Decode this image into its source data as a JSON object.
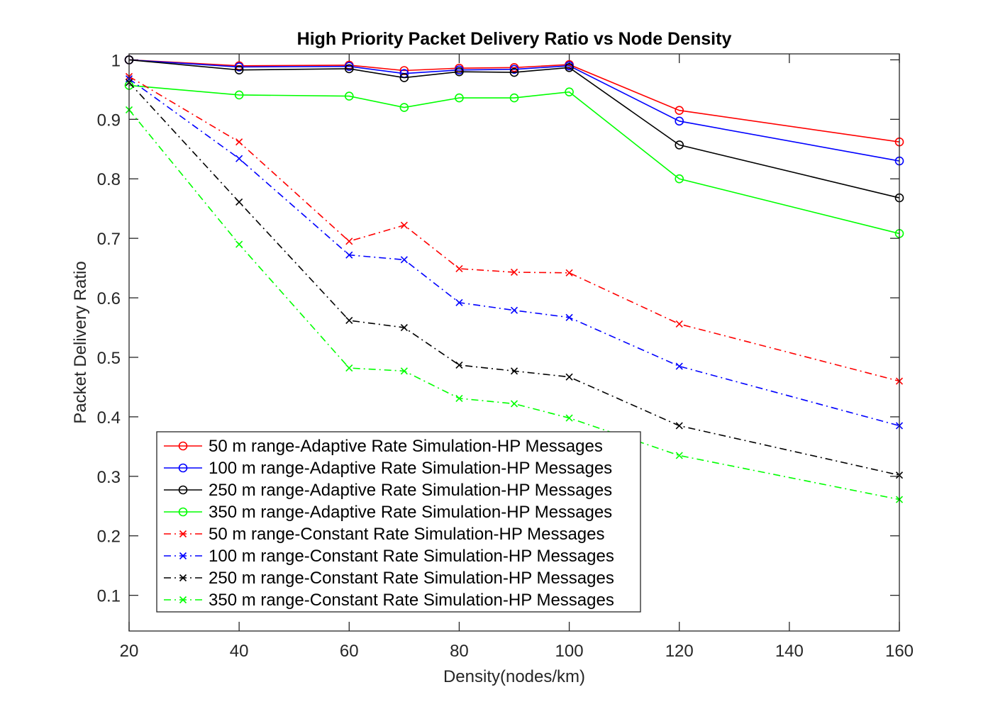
{
  "chart_data": {
    "type": "line",
    "title": "High Priority Packet Delivery Ratio vs Node Density",
    "xlabel": "Density(nodes/km)",
    "ylabel": "Packet Delivery Ratio",
    "xlim": [
      20,
      160
    ],
    "ylim": [
      0.04,
      1.01
    ],
    "xticks": [
      20,
      40,
      60,
      80,
      100,
      120,
      140,
      160
    ],
    "yticks": [
      0.1,
      0.2,
      0.3,
      0.4,
      0.5,
      0.6,
      0.7,
      0.8,
      0.9,
      1
    ],
    "ytick_labels": [
      "0.1",
      "0.2",
      "0.3",
      "0.4",
      "0.5",
      "0.6",
      "0.7",
      "0.8",
      "0.9",
      "1"
    ],
    "xtick_labels": [
      "20",
      "40",
      "60",
      "80",
      "100",
      "120",
      "140",
      "160"
    ],
    "grid": false,
    "legend_position": "bottom-left",
    "x": [
      20,
      40,
      60,
      70,
      80,
      90,
      100,
      120,
      160
    ],
    "series": [
      {
        "name": "50 m range-Adaptive Rate Simulation-HP Messages",
        "color": "#ff0000",
        "marker": "circle",
        "line_style": "solid",
        "values": [
          1.0,
          0.99,
          0.991,
          0.982,
          0.986,
          0.987,
          0.992,
          0.915,
          0.862
        ]
      },
      {
        "name": "100 m range-Adaptive Rate Simulation-HP Messages",
        "color": "#0000ff",
        "marker": "circle",
        "line_style": "solid",
        "values": [
          1.0,
          0.988,
          0.989,
          0.977,
          0.983,
          0.984,
          0.99,
          0.897,
          0.83
        ]
      },
      {
        "name": "250 m range-Adaptive Rate Simulation-HP Messages",
        "color": "#000000",
        "marker": "circle",
        "line_style": "solid",
        "values": [
          1.0,
          0.983,
          0.985,
          0.97,
          0.98,
          0.979,
          0.987,
          0.857,
          0.768
        ]
      },
      {
        "name": "350 m range-Adaptive Rate Simulation-HP Messages",
        "color": "#00ff00",
        "marker": "circle",
        "line_style": "solid",
        "values": [
          0.957,
          0.941,
          0.939,
          0.92,
          0.936,
          0.936,
          0.946,
          0.8,
          0.708
        ]
      },
      {
        "name": "50 m range-Constant Rate Simulation-HP Messages",
        "color": "#ff0000",
        "marker": "x",
        "line_style": "dashdot",
        "values": [
          0.972,
          0.862,
          0.695,
          0.722,
          0.649,
          0.643,
          0.642,
          0.556,
          0.46
        ]
      },
      {
        "name": "100 m range-Constant Rate Simulation-HP Messages",
        "color": "#0000ff",
        "marker": "x",
        "line_style": "dashdot",
        "values": [
          0.968,
          0.834,
          0.672,
          0.664,
          0.592,
          0.579,
          0.567,
          0.485,
          0.385
        ]
      },
      {
        "name": "250 m range-Constant Rate Simulation-HP Messages",
        "color": "#000000",
        "marker": "x",
        "line_style": "dashdot",
        "values": [
          0.962,
          0.761,
          0.562,
          0.55,
          0.487,
          0.477,
          0.467,
          0.385,
          0.302
        ]
      },
      {
        "name": "350 m range-Constant Rate Simulation-HP Messages",
        "color": "#00ff00",
        "marker": "x",
        "line_style": "dashdot",
        "values": [
          0.916,
          0.69,
          0.482,
          0.477,
          0.431,
          0.422,
          0.398,
          0.335,
          0.261
        ]
      }
    ]
  }
}
